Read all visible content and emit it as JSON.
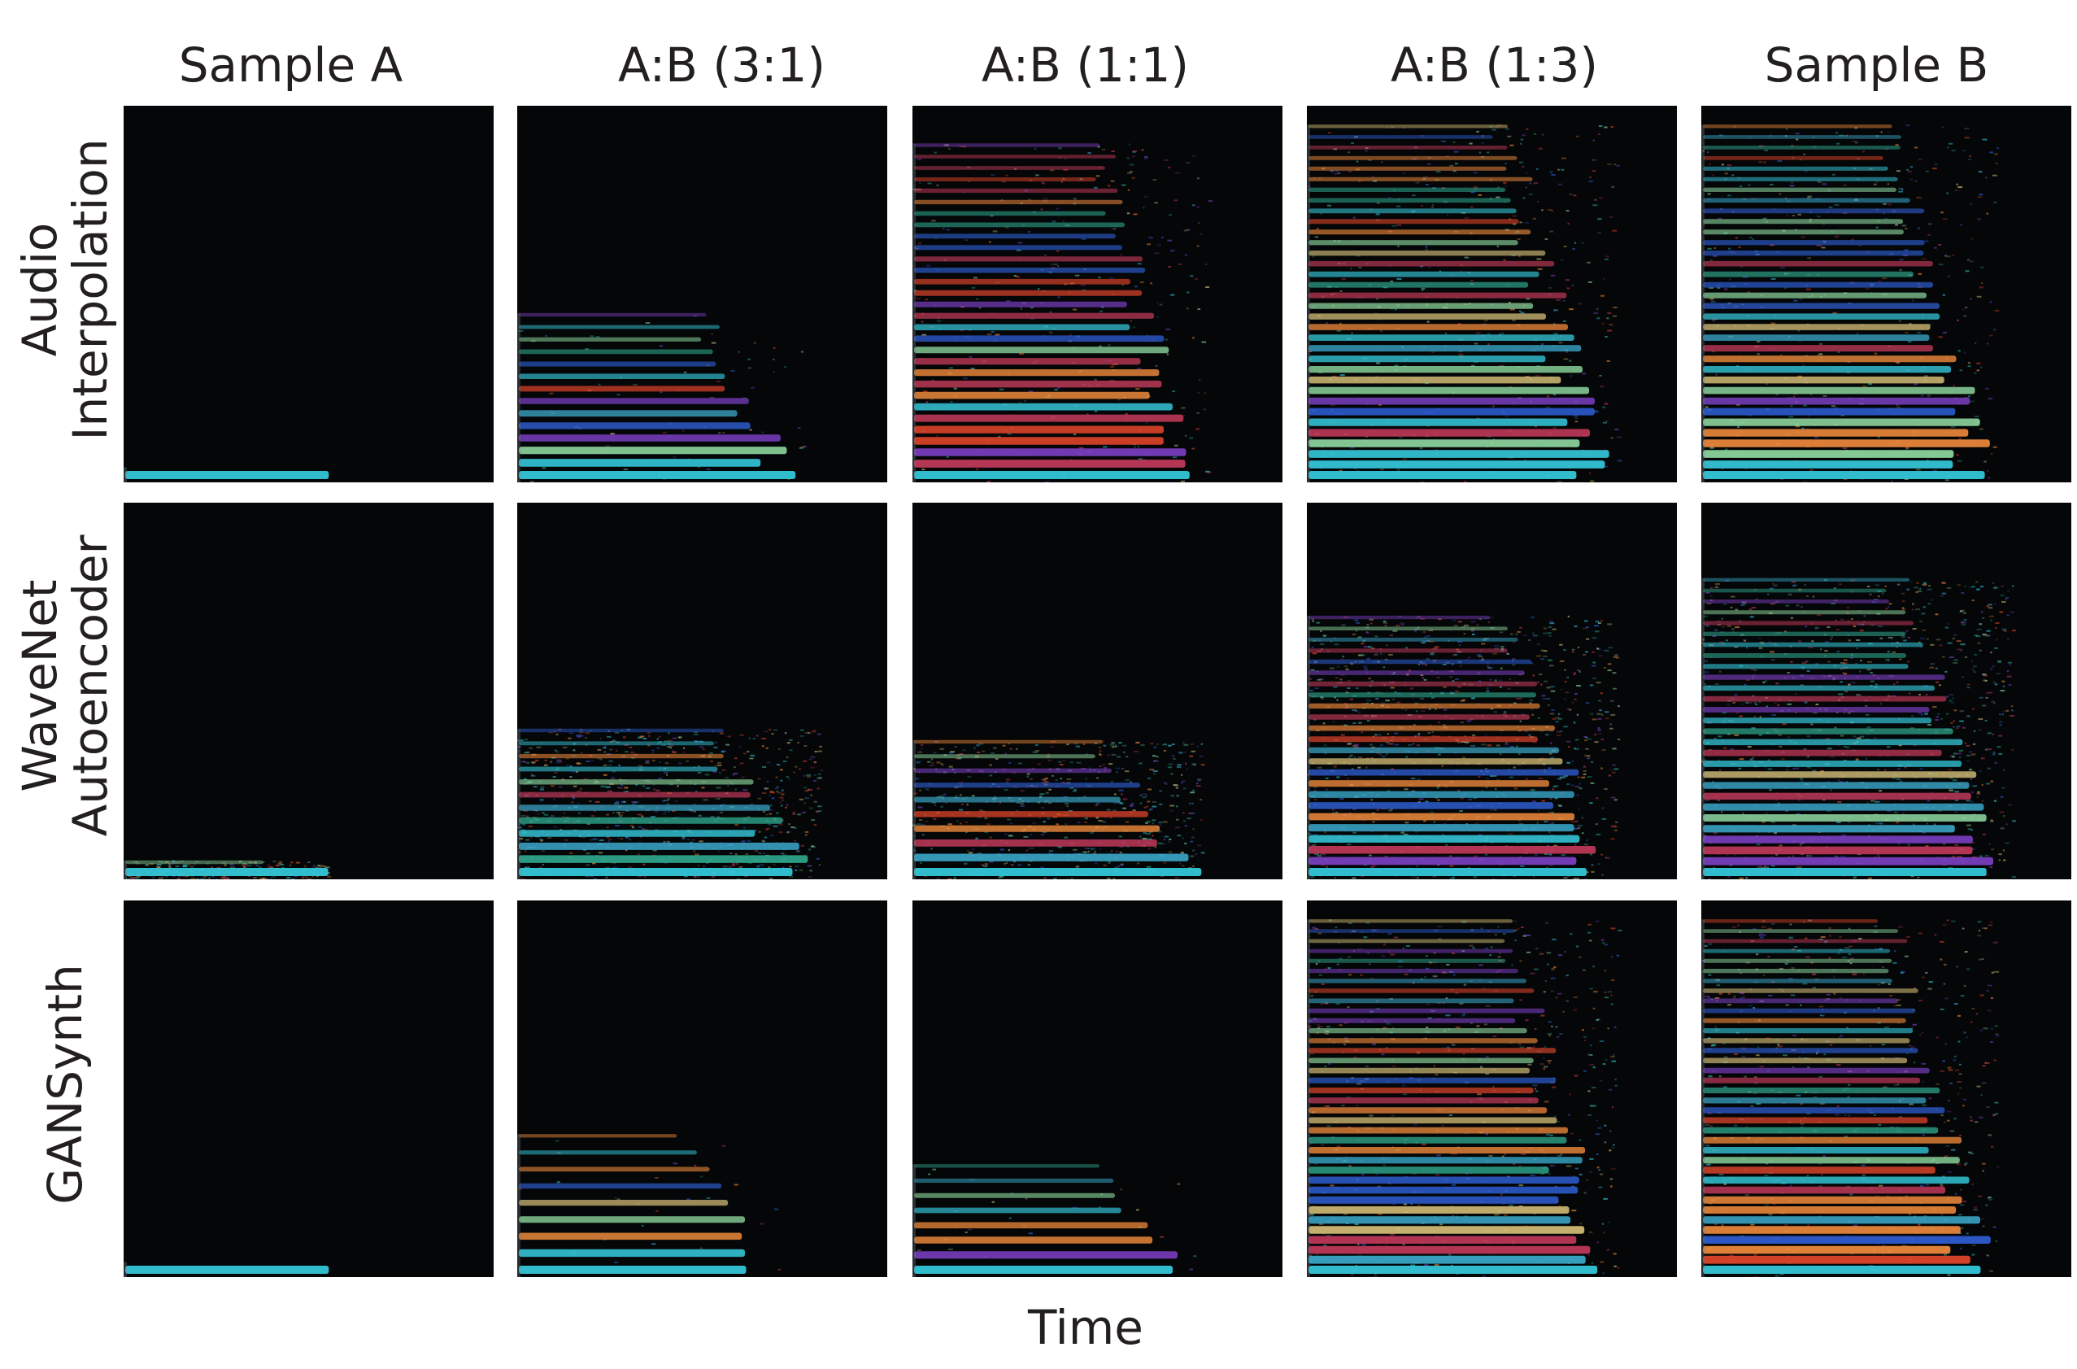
{
  "figure": {
    "column_headers": [
      "Sample A",
      "A:B (3:1)",
      "A:B (1:1)",
      "A:B (1:3)",
      "Sample B"
    ],
    "row_headers": [
      [
        "Audio",
        "Interpolation"
      ],
      [
        "WaveNet",
        "Autoencoder"
      ],
      [
        "GANSynth"
      ]
    ],
    "x_axis_label": "Time"
  },
  "colors": {
    "panel_background": "#040607",
    "text": "#231f20"
  }
}
